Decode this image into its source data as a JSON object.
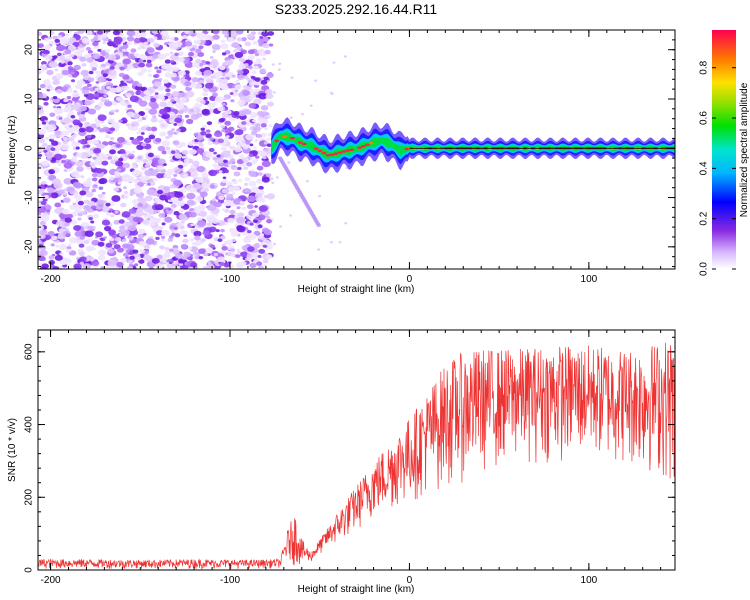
{
  "title": "S233.2025.292.16.44.R11",
  "colors": {
    "series": "#ee3333",
    "trace": "#000000",
    "noise": "#7a2cf0"
  },
  "chart_data": [
    {
      "type": "heatmap",
      "title": "S233.2025.292.16.44.R11",
      "xlabel": "Height of straight line (km)",
      "ylabel": "Frequency (Hz)",
      "xlim": [
        -207,
        148
      ],
      "ylim": [
        -24.5,
        24
      ],
      "x_ticks": [
        -200,
        -100,
        0,
        100
      ],
      "y_ticks": [
        -20,
        -10,
        0,
        10,
        20
      ],
      "colorbar": {
        "label": "Normalized spectral amplitude",
        "range": [
          0,
          0.95
        ],
        "ticks": [
          0.0,
          0.2,
          0.4,
          0.6,
          0.8
        ],
        "tick_labels": [
          "0.0",
          "0.2",
          "0.4",
          "0.6",
          "0.8"
        ]
      },
      "regions": {
        "noise_x_range": [
          -207,
          -77
        ],
        "signal_start_km": -77
      },
      "trace": [
        {
          "x": -77,
          "y": 0.0
        },
        {
          "x": -72,
          "y": 2.5
        },
        {
          "x": -66,
          "y": 2.2
        },
        {
          "x": -60,
          "y": 1.0
        },
        {
          "x": -55,
          "y": 0.5
        },
        {
          "x": -50,
          "y": -0.5
        },
        {
          "x": -45,
          "y": -1.5
        },
        {
          "x": -40,
          "y": -1.0
        },
        {
          "x": -35,
          "y": -0.5
        },
        {
          "x": -30,
          "y": -0.2
        },
        {
          "x": -25,
          "y": 0.5
        },
        {
          "x": -20,
          "y": 1.2
        },
        {
          "x": -15,
          "y": 1.6
        },
        {
          "x": -10,
          "y": 0.8
        },
        {
          "x": -5,
          "y": -0.5
        },
        {
          "x": 0,
          "y": 0.0
        },
        {
          "x": 20,
          "y": 0.0
        },
        {
          "x": 40,
          "y": 0.0
        },
        {
          "x": 60,
          "y": 0.0
        },
        {
          "x": 80,
          "y": 0.0
        },
        {
          "x": 100,
          "y": 0.0
        },
        {
          "x": 120,
          "y": 0.0
        },
        {
          "x": 148,
          "y": 0.0
        }
      ]
    },
    {
      "type": "line",
      "xlabel": "Height of straight line (km)",
      "ylabel": "SNR (10 * v/v)",
      "xlim": [
        -207,
        148
      ],
      "ylim": [
        0,
        660
      ],
      "x_ticks": [
        -200,
        -100,
        0,
        100
      ],
      "y_ticks": [
        0,
        200,
        400,
        600
      ],
      "series": [
        {
          "name": "SNR",
          "x": [
            -207,
            -180,
            -150,
            -120,
            -90,
            -72,
            -68,
            -64,
            -60,
            -55,
            -50,
            -45,
            -40,
            -30,
            -20,
            -10,
            0,
            10,
            20,
            30,
            40,
            60,
            80,
            100,
            120,
            140,
            148
          ],
          "upper": [
            30,
            30,
            28,
            30,
            28,
            30,
            110,
            160,
            85,
            50,
            85,
            120,
            160,
            230,
            300,
            360,
            420,
            490,
            570,
            600,
            610,
            610,
            620,
            620,
            610,
            630,
            650
          ],
          "lower": [
            3,
            3,
            3,
            3,
            3,
            5,
            20,
            10,
            10,
            20,
            40,
            60,
            70,
            100,
            140,
            160,
            180,
            200,
            220,
            240,
            260,
            290,
            290,
            300,
            280,
            250,
            200
          ]
        }
      ]
    }
  ]
}
